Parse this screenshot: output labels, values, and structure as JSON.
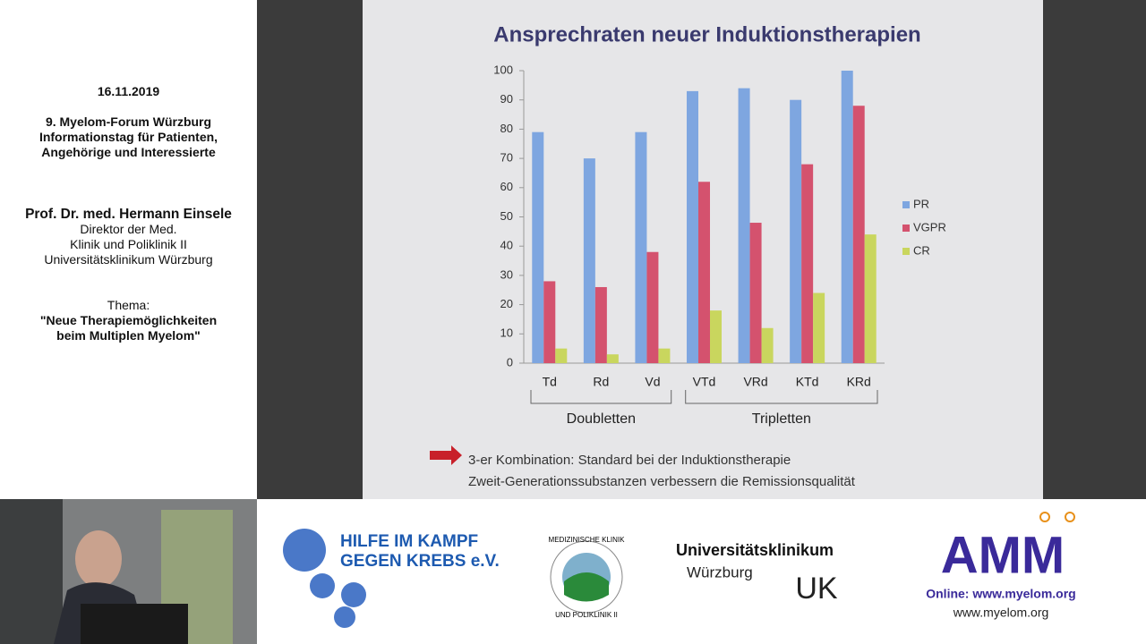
{
  "sidebar": {
    "date": "16.11.2019",
    "event": [
      "9. Myelom-Forum Würzburg",
      "Informationstag für Patienten,",
      "Angehörige und Interessierte"
    ],
    "speaker": "Prof. Dr. med. Hermann Einsele",
    "affiliation": [
      "Direktor der Med.",
      "Klinik und Poliklinik II",
      "Universitätsklinikum Würzburg"
    ],
    "topic_label": "Thema:",
    "topic": [
      "\"Neue Therapiemöglichkeiten",
      "beim Multiplen Myelom\""
    ]
  },
  "chart_data": {
    "type": "bar",
    "title": "Ansprechraten neuer Induktionstherapien",
    "categories": [
      "Td",
      "Rd",
      "Vd",
      "VTd",
      "VRd",
      "KTd",
      "KRd"
    ],
    "series": [
      {
        "name": "PR",
        "color": "#7ea6e0",
        "values": [
          79,
          70,
          79,
          93,
          94,
          90,
          100
        ]
      },
      {
        "name": "VGPR",
        "color": "#d4526e",
        "values": [
          28,
          26,
          38,
          62,
          48,
          68,
          88
        ]
      },
      {
        "name": "CR",
        "color": "#c9d65e",
        "values": [
          5,
          3,
          5,
          18,
          12,
          24,
          44
        ]
      }
    ],
    "ylim": [
      0,
      100
    ],
    "yticks": [
      0,
      10,
      20,
      30,
      40,
      50,
      60,
      70,
      80,
      90,
      100
    ],
    "group_labels": [
      "Doubletten",
      "Tripletten"
    ],
    "legend": "right"
  },
  "slide": {
    "notes": [
      "3-er Kombination: Standard bei der Induktionstherapie",
      "Zweit-Generationssubstanzen verbessern die Remissionsqualität"
    ]
  },
  "logos": {
    "hilfe": [
      "HILFE IM KAMPF",
      "GEGEN KREBS e.V."
    ],
    "klinik": [
      "MEDIZINISCHE KLINIK",
      "UND POLIKLINIK II"
    ],
    "uk": [
      "Universitätsklinikum",
      "Würzburg",
      "UK"
    ],
    "amm": [
      "AMM",
      "Online: www.myelom.org",
      "www.myelom.org"
    ]
  }
}
